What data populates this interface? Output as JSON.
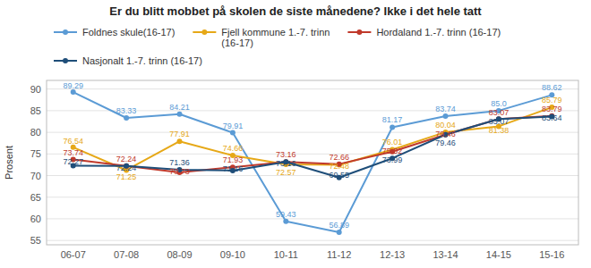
{
  "chart_data": {
    "type": "line",
    "title": "Er du blitt mobbet på skolen de siste månedene? Ikke i det hele tatt",
    "ylabel": "Prosent",
    "categories": [
      "06-07",
      "07-08",
      "08-09",
      "09-10",
      "10-11",
      "11-12",
      "12-13",
      "13-14",
      "14-15",
      "15-16"
    ],
    "series": [
      {
        "name": "Foldnes skule(16-17)",
        "color": "#5b9bd5",
        "marker": "circle",
        "values": [
          89.29,
          83.33,
          84.21,
          79.91,
          59.43,
          56.89,
          81.17,
          83.74,
          85.0,
          88.62
        ],
        "value_labels": [
          "89.29",
          "83.33",
          "84.21",
          "79.91",
          "59.43",
          "56.89",
          "81.17",
          "83.74",
          "85.0",
          "88.62"
        ]
      },
      {
        "name": "Fjell kommune 1.-7. trinn\n(16-17)",
        "color": "#e6a817",
        "marker": "circle",
        "values": [
          76.54,
          71.25,
          77.91,
          74.66,
          72.57,
          72.48,
          76.01,
          80.04,
          81.38,
          85.79
        ]
      },
      {
        "name": "Hordaland 1.-7. trinn (16-17)",
        "color": "#c0392b",
        "marker": "circle",
        "values": [
          73.74,
          72.24,
          70.73,
          71.93,
          73.16,
          72.66,
          75.52,
          79.46,
          83.07,
          83.79
        ]
      },
      {
        "name": "Nasjonalt 1.-7. trinn (16-17)",
        "color": "#1f4e79",
        "marker": "circle",
        "values": [
          72.27,
          72.24,
          71.36,
          71.16,
          73.16,
          69.55,
          73.99,
          79.46,
          83.07,
          83.64
        ]
      }
    ],
    "ylim": [
      54,
      92
    ],
    "yticks": [
      55,
      60,
      65,
      70,
      75,
      80,
      85,
      90
    ],
    "grid": true,
    "legend": "top",
    "data_labels": true
  }
}
